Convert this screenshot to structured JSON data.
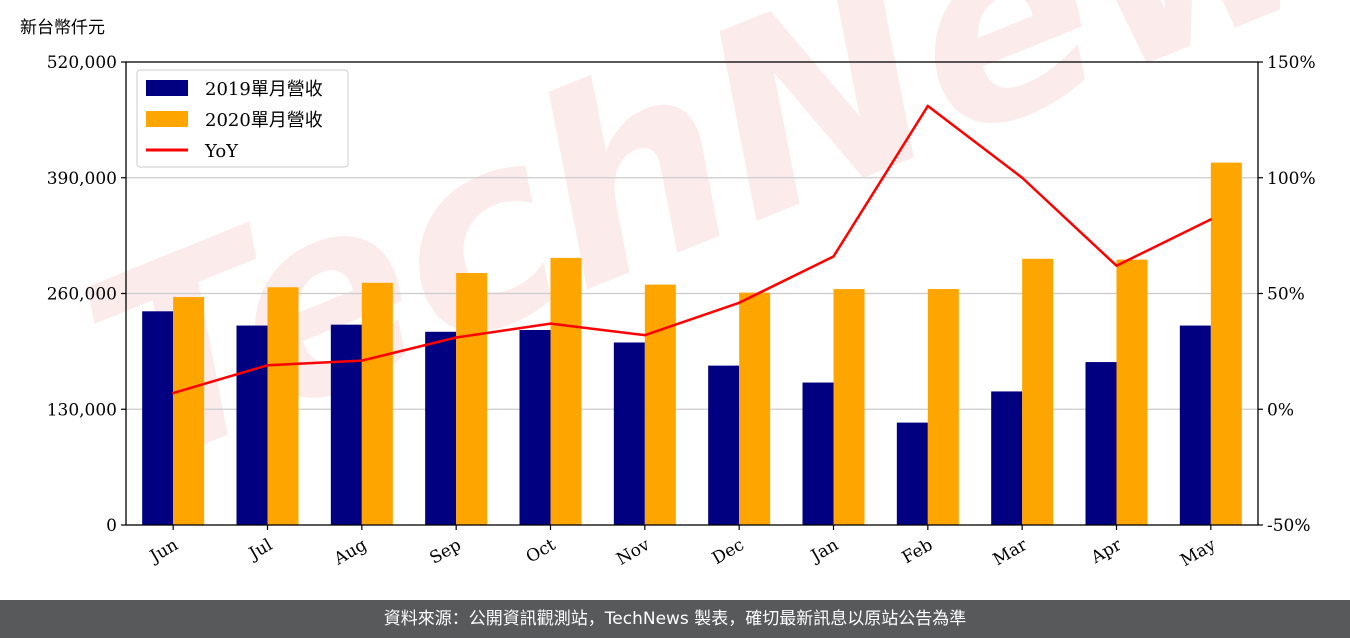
{
  "unit_label": "新台幣仟元",
  "watermark": "TechNews",
  "footer": "資料來源：公開資訊觀測站，TechNews 製表，確切最新訊息以原站公告為準",
  "colors": {
    "bar_2019": "#000080",
    "bar_2020": "#ffa500",
    "line_yoy": "#ff0000",
    "grid": "#cccccc",
    "footer_bg": "#58595b"
  },
  "chart_data": {
    "type": "bar",
    "categories": [
      "Jun",
      "Jul",
      "Aug",
      "Sep",
      "Oct",
      "Nov",
      "Dec",
      "Jan",
      "Feb",
      "Mar",
      "Apr",
      "May"
    ],
    "series": [
      {
        "name": "2019單月營收",
        "type": "bar",
        "axis": "left",
        "values": [
          240000,
          224000,
          225000,
          217000,
          219000,
          205000,
          179000,
          160000,
          115000,
          150000,
          183000,
          224000
        ]
      },
      {
        "name": "2020單月營收",
        "type": "bar",
        "axis": "left",
        "values": [
          256000,
          267000,
          272000,
          283000,
          300000,
          270000,
          261000,
          265000,
          265000,
          299000,
          298000,
          407000
        ]
      },
      {
        "name": "YoY",
        "type": "line",
        "axis": "right",
        "values": [
          7,
          19,
          21,
          31,
          37,
          32,
          46,
          66,
          131,
          100,
          62,
          82
        ]
      }
    ],
    "y_left": {
      "ticks": [
        "0",
        "130,000",
        "260,000",
        "390,000",
        "520,000"
      ],
      "range": [
        0,
        520000
      ]
    },
    "y_right": {
      "ticks": [
        "-50%",
        "0%",
        "50%",
        "100%",
        "150%"
      ],
      "range": [
        -50,
        150
      ]
    },
    "legend_position": "upper-left",
    "grid": "horizontal"
  }
}
